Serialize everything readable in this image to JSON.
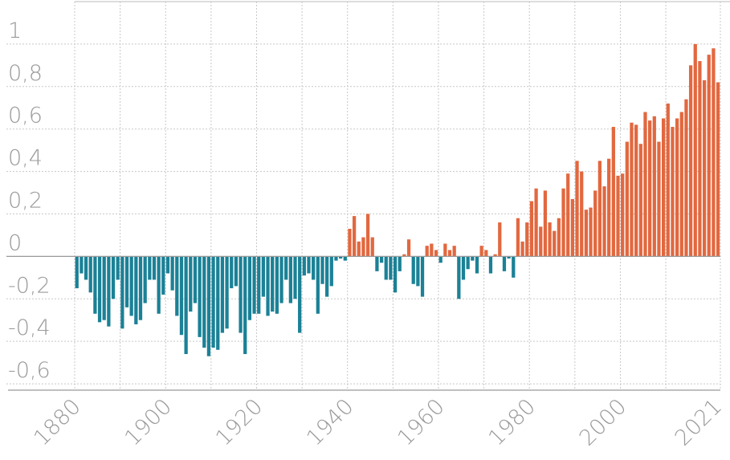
{
  "chart_data": {
    "type": "bar",
    "x": [
      1880,
      1881,
      1882,
      1883,
      1884,
      1885,
      1886,
      1887,
      1888,
      1889,
      1890,
      1891,
      1892,
      1893,
      1894,
      1895,
      1896,
      1897,
      1898,
      1899,
      1900,
      1901,
      1902,
      1903,
      1904,
      1905,
      1906,
      1907,
      1908,
      1909,
      1910,
      1911,
      1912,
      1913,
      1914,
      1915,
      1916,
      1917,
      1918,
      1919,
      1920,
      1921,
      1922,
      1923,
      1924,
      1925,
      1926,
      1927,
      1928,
      1929,
      1930,
      1931,
      1932,
      1933,
      1934,
      1935,
      1936,
      1937,
      1938,
      1939,
      1940,
      1941,
      1942,
      1943,
      1944,
      1945,
      1946,
      1947,
      1948,
      1949,
      1950,
      1951,
      1952,
      1953,
      1954,
      1955,
      1956,
      1957,
      1958,
      1959,
      1960,
      1961,
      1962,
      1963,
      1964,
      1965,
      1966,
      1967,
      1968,
      1969,
      1970,
      1971,
      1972,
      1973,
      1974,
      1975,
      1976,
      1977,
      1978,
      1979,
      1980,
      1981,
      1982,
      1983,
      1984,
      1985,
      1986,
      1987,
      1988,
      1989,
      1990,
      1991,
      1992,
      1993,
      1994,
      1995,
      1996,
      1997,
      1998,
      1999,
      2000,
      2001,
      2002,
      2003,
      2004,
      2005,
      2006,
      2007,
      2008,
      2009,
      2010,
      2011,
      2012,
      2013,
      2014,
      2015,
      2016,
      2017,
      2018,
      2019,
      2020,
      2021
    ],
    "values": [
      -0.15,
      -0.08,
      -0.11,
      -0.17,
      -0.27,
      -0.31,
      -0.3,
      -0.33,
      -0.2,
      -0.11,
      -0.34,
      -0.24,
      -0.28,
      -0.32,
      -0.3,
      -0.22,
      -0.11,
      -0.11,
      -0.27,
      -0.18,
      -0.08,
      -0.16,
      -0.28,
      -0.37,
      -0.46,
      -0.26,
      -0.22,
      -0.38,
      -0.43,
      -0.47,
      -0.43,
      -0.44,
      -0.36,
      -0.34,
      -0.15,
      -0.14,
      -0.36,
      -0.46,
      -0.3,
      -0.27,
      -0.27,
      -0.19,
      -0.28,
      -0.26,
      -0.27,
      -0.22,
      -0.11,
      -0.22,
      -0.2,
      -0.36,
      -0.09,
      -0.08,
      -0.11,
      -0.27,
      -0.13,
      -0.19,
      -0.14,
      -0.02,
      -0.01,
      -0.02,
      0.13,
      0.19,
      0.07,
      0.09,
      0.2,
      0.09,
      -0.07,
      -0.03,
      -0.11,
      -0.11,
      -0.17,
      -0.07,
      0.01,
      0.08,
      -0.13,
      -0.14,
      -0.19,
      0.05,
      0.06,
      0.03,
      -0.03,
      0.06,
      0.03,
      0.05,
      -0.2,
      -0.11,
      -0.06,
      -0.02,
      -0.08,
      0.05,
      0.03,
      -0.08,
      0.01,
      0.16,
      -0.07,
      -0.01,
      -0.1,
      0.18,
      0.07,
      0.16,
      0.26,
      0.32,
      0.14,
      0.31,
      0.16,
      0.12,
      0.18,
      0.32,
      0.39,
      0.27,
      0.45,
      0.4,
      0.22,
      0.23,
      0.31,
      0.45,
      0.33,
      0.46,
      0.61,
      0.38,
      0.39,
      0.54,
      0.63,
      0.62,
      0.53,
      0.68,
      0.64,
      0.66,
      0.54,
      0.65,
      0.72,
      0.61,
      0.65,
      0.68,
      0.74,
      0.9,
      1.0,
      0.92,
      0.83,
      0.95,
      0.98,
      0.82
    ],
    "positive_color": "#e2683f",
    "negative_color": "#1b8196",
    "xlim": [
      1880,
      2022
    ],
    "xticks": [
      1880,
      1900,
      1920,
      1940,
      1960,
      1980,
      2000,
      2021
    ],
    "xgrid": [
      1880,
      1890,
      1900,
      1910,
      1920,
      1930,
      1940,
      1950,
      1960,
      1970,
      1980,
      1990,
      2000,
      2010
    ],
    "ylim": [
      -0.63,
      1.2
    ],
    "yticks": [
      {
        "value": -0.6,
        "label": "-0,6"
      },
      {
        "value": -0.4,
        "label": "-0,4"
      },
      {
        "value": -0.2,
        "label": "-0,2"
      },
      0,
      {
        "value": 0.2,
        "label": "0,2"
      },
      {
        "value": 0.4,
        "label": "0,4"
      },
      {
        "value": 0.6,
        "label": "0,6"
      },
      {
        "value": 0.8,
        "label": "0,8"
      },
      1
    ],
    "grid": true
  }
}
